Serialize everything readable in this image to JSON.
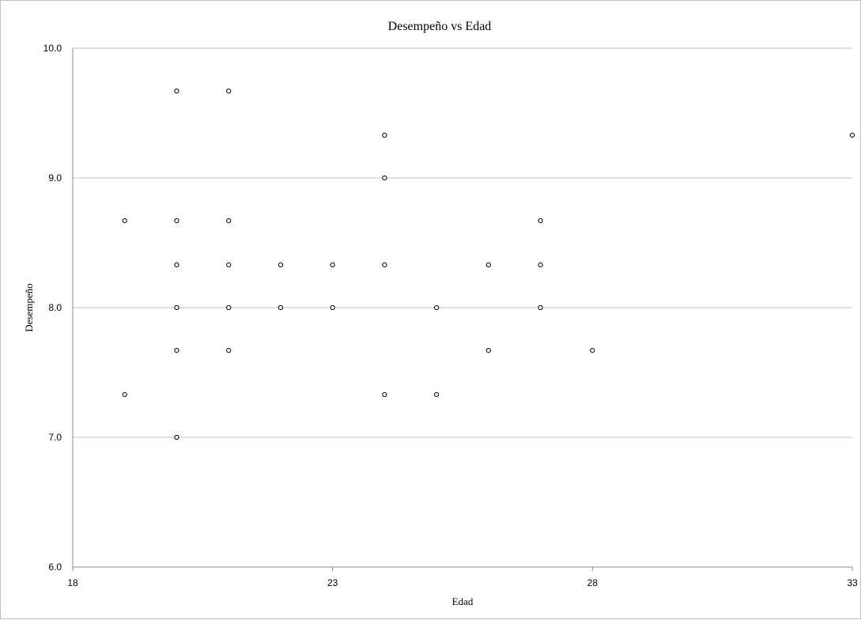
{
  "chart_data": {
    "type": "scatter",
    "title": "Desempeño vs Edad",
    "xlabel": "Edad",
    "ylabel": "Desempeño",
    "xlim": [
      18,
      33
    ],
    "ylim": [
      6.0,
      10.0
    ],
    "x_ticks": [
      18,
      23,
      28,
      33
    ],
    "y_ticks": [
      "6.0",
      "7.0",
      "8.0",
      "9.0",
      "10.0"
    ],
    "grid": "horizontal",
    "legend": "none",
    "marker": "hollow-circle",
    "series": [
      {
        "points": [
          {
            "x": 19,
            "y": 8.67
          },
          {
            "x": 19,
            "y": 7.33
          },
          {
            "x": 20,
            "y": 9.67
          },
          {
            "x": 20,
            "y": 8.67
          },
          {
            "x": 20,
            "y": 8.33
          },
          {
            "x": 20,
            "y": 8.0
          },
          {
            "x": 20,
            "y": 7.67
          },
          {
            "x": 20,
            "y": 7.0
          },
          {
            "x": 21,
            "y": 9.67
          },
          {
            "x": 21,
            "y": 8.67
          },
          {
            "x": 21,
            "y": 8.33
          },
          {
            "x": 21,
            "y": 8.0
          },
          {
            "x": 21,
            "y": 7.67
          },
          {
            "x": 22,
            "y": 8.33
          },
          {
            "x": 22,
            "y": 8.0
          },
          {
            "x": 23,
            "y": 8.33
          },
          {
            "x": 23,
            "y": 8.0
          },
          {
            "x": 24,
            "y": 9.33
          },
          {
            "x": 24,
            "y": 9.0
          },
          {
            "x": 24,
            "y": 8.33
          },
          {
            "x": 24,
            "y": 7.33
          },
          {
            "x": 25,
            "y": 8.0
          },
          {
            "x": 25,
            "y": 7.33
          },
          {
            "x": 26,
            "y": 8.33
          },
          {
            "x": 26,
            "y": 7.67
          },
          {
            "x": 27,
            "y": 8.67
          },
          {
            "x": 27,
            "y": 8.33
          },
          {
            "x": 27,
            "y": 8.0
          },
          {
            "x": 28,
            "y": 7.67
          },
          {
            "x": 33,
            "y": 9.33
          }
        ]
      }
    ]
  }
}
